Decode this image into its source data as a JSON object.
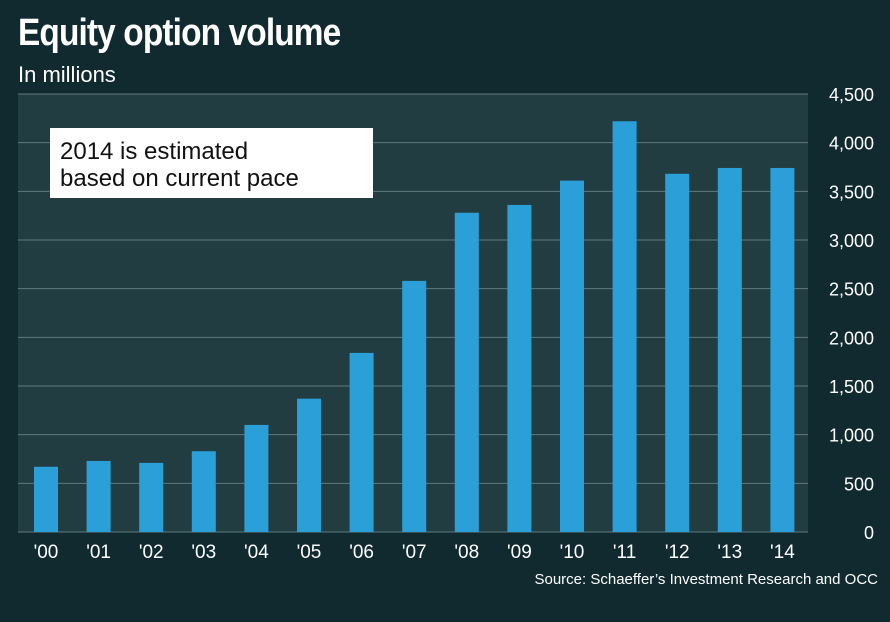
{
  "title": "Equity option volume",
  "subtitle": "In millions",
  "source": "Source: Schaeffer’s Investment Research and OCC",
  "note": {
    "line1": "2014 is estimated",
    "line2": "based on current pace"
  },
  "colors": {
    "background": "#102a2f",
    "plot_background": "#223d42",
    "bar": "#2b9fd8",
    "grid": "#5f7a7e",
    "text": "#ffffff"
  },
  "chart_data": {
    "type": "bar",
    "title": "Equity option volume",
    "subtitle": "In millions",
    "categories": [
      "'00",
      "'01",
      "'02",
      "'03",
      "'04",
      "'05",
      "'06",
      "'07",
      "'08",
      "'09",
      "'10",
      "'11",
      "'12",
      "'13",
      "'14"
    ],
    "values": [
      670,
      730,
      710,
      830,
      1100,
      1370,
      1840,
      2580,
      3280,
      3360,
      3610,
      4220,
      3680,
      3740,
      3740
    ],
    "ylim": [
      0,
      4500
    ],
    "yticks": [
      0,
      500,
      1000,
      1500,
      2000,
      2500,
      3000,
      3500,
      4000,
      4500
    ],
    "ytick_labels": [
      "0",
      "500",
      "1,000",
      "1,500",
      "2,000",
      "2,500",
      "3,000",
      "3,500",
      "4,000",
      "4,500"
    ],
    "y_axis_side": "right",
    "grid": true,
    "annotation": "2014 is estimated based on current pace"
  }
}
